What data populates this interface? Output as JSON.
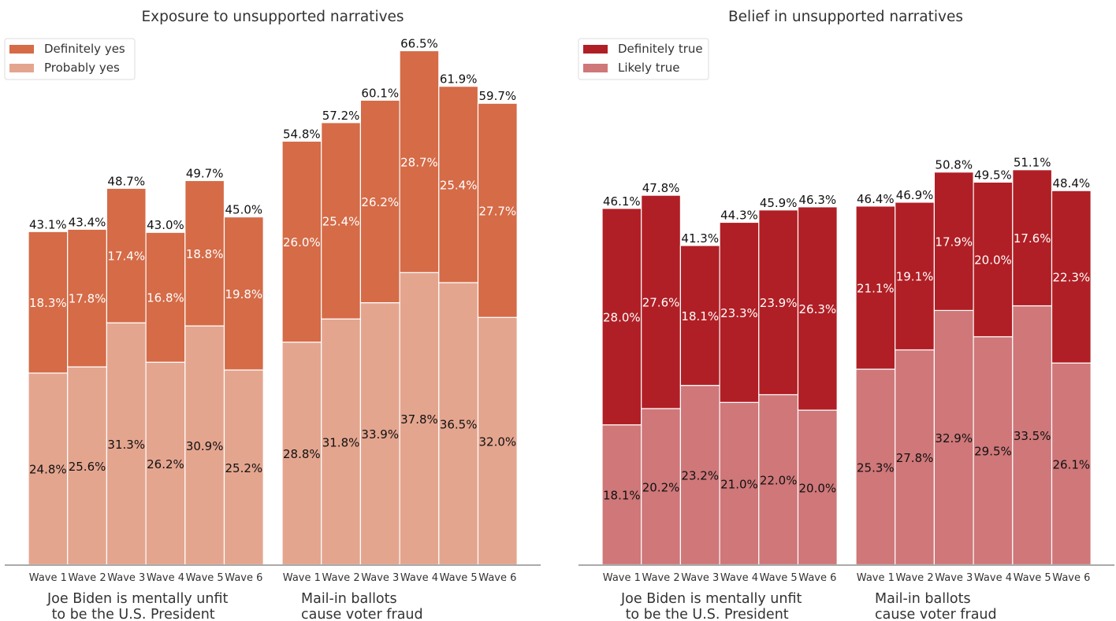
{
  "chart_data": [
    {
      "type": "bar",
      "stacked": true,
      "title": "Exposure to unsupported narratives",
      "ylim": [
        0,
        70
      ],
      "grid": false,
      "legend_position": "top-left",
      "categories": [
        "Wave 1",
        "Wave 2",
        "Wave 3",
        "Wave 4",
        "Wave 5",
        "Wave 6"
      ],
      "groups": [
        {
          "label": "Joe Biden is mentally unfit\n to be the U.S. President",
          "series": [
            {
              "name": "Probably yes",
              "color": "#e4a58f",
              "values": [
                24.8,
                25.6,
                31.3,
                26.2,
                30.9,
                25.2
              ]
            },
            {
              "name": "Definitely yes",
              "color": "#d56b47",
              "values": [
                18.3,
                17.8,
                17.4,
                16.8,
                18.8,
                19.8
              ]
            }
          ],
          "totals": [
            43.1,
            43.4,
            48.7,
            43.0,
            49.7,
            45.0
          ]
        },
        {
          "label": "Mail-in ballots\ncause voter fraud",
          "series": [
            {
              "name": "Probably yes",
              "color": "#e4a58f",
              "values": [
                28.8,
                31.8,
                33.9,
                37.8,
                36.5,
                32.0
              ]
            },
            {
              "name": "Definitely yes",
              "color": "#d56b47",
              "values": [
                26.0,
                25.4,
                26.2,
                28.7,
                25.4,
                27.7
              ]
            }
          ],
          "totals": [
            54.8,
            57.2,
            60.1,
            66.5,
            61.9,
            59.7
          ]
        }
      ],
      "legend": [
        {
          "name": "Definitely yes",
          "color": "#d56b47"
        },
        {
          "name": "Probably yes",
          "color": "#e4a58f"
        }
      ]
    },
    {
      "type": "bar",
      "stacked": true,
      "title": "Belief in unsupported narratives",
      "ylim": [
        0,
        70
      ],
      "grid": false,
      "legend_position": "top-left",
      "categories": [
        "Wave 1",
        "Wave 2",
        "Wave 3",
        "Wave 4",
        "Wave 5",
        "Wave 6"
      ],
      "groups": [
        {
          "label": "Joe Biden is mentally unfit\n to be the U.S. President",
          "series": [
            {
              "name": "Likely true",
              "color": "#cf7779",
              "values": [
                18.1,
                20.2,
                23.2,
                21.0,
                22.0,
                20.0
              ]
            },
            {
              "name": "Definitely true",
              "color": "#b01f25",
              "values": [
                28.0,
                27.6,
                18.1,
                23.3,
                23.9,
                26.3
              ]
            }
          ],
          "totals": [
            46.1,
            47.8,
            41.3,
            44.3,
            45.9,
            46.3
          ]
        },
        {
          "label": "Mail-in ballots\ncause voter fraud",
          "series": [
            {
              "name": "Likely true",
              "color": "#cf7779",
              "values": [
                25.3,
                27.8,
                32.9,
                29.5,
                33.5,
                26.1
              ]
            },
            {
              "name": "Definitely true",
              "color": "#b01f25",
              "values": [
                21.1,
                19.1,
                17.9,
                20.0,
                17.6,
                22.3
              ]
            }
          ],
          "totals": [
            46.4,
            46.9,
            50.8,
            49.5,
            51.1,
            48.4
          ]
        }
      ],
      "legend": [
        {
          "name": "Definitely true",
          "color": "#b01f25"
        },
        {
          "name": "Likely true",
          "color": "#cf7779"
        }
      ]
    }
  ]
}
